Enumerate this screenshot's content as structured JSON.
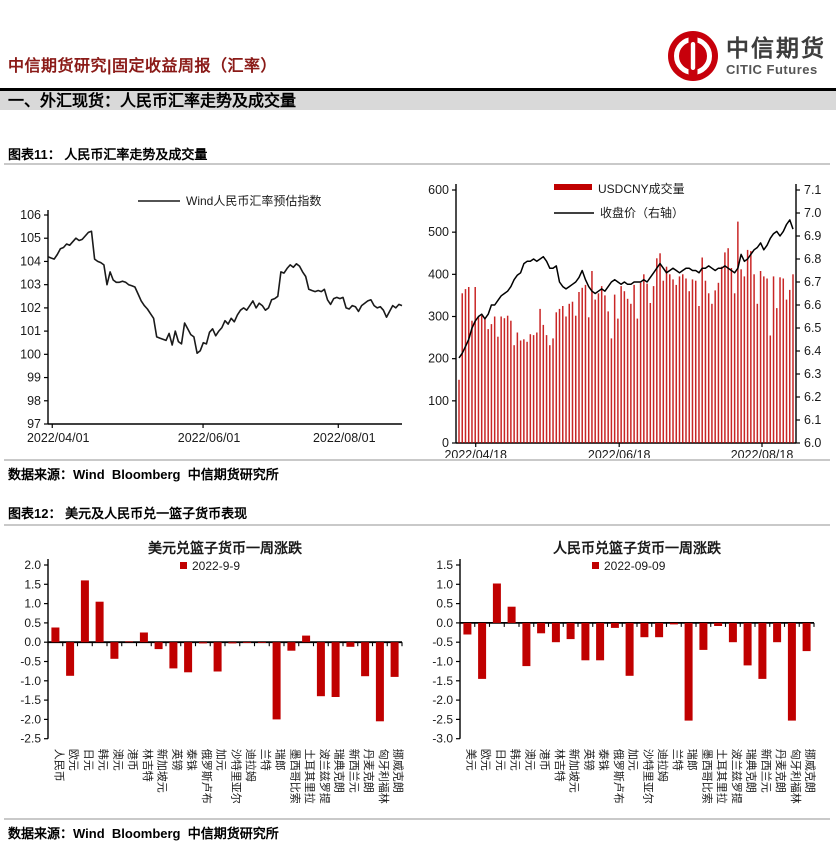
{
  "header": {
    "title": "中信期货研究|固定收益周报（汇率）",
    "logo": {
      "cn": "中信期货",
      "en": "CITIC Futures",
      "brand_color": "#c7000b"
    }
  },
  "section": {
    "title": "一、外汇现货：人民币汇率走势及成交量"
  },
  "figure11": {
    "caption": "图表11： 人民币汇率走势及成交量",
    "source": "数据来源：Wind  Bloomberg  中信期货研究所"
  },
  "figure12": {
    "caption": "图表12： 美元及人民币兑一篮子货币表现",
    "source": "数据来源：Wind  Bloomberg  中信期货研究所"
  },
  "chart_data": [
    {
      "type": "line",
      "legend": "Wind人民币汇率预估指数",
      "line_color": "#1a1a1a",
      "ylim": [
        97,
        106
      ],
      "ytick_step": 1,
      "ydecimals": 0,
      "xticks": [
        "2022/04/01",
        "2022/06/01",
        "2022/08/01"
      ],
      "xtick_pos": [
        0.012,
        0.438,
        0.82
      ],
      "values": [
        104.2,
        104.15,
        104.1,
        104.3,
        104.55,
        104.6,
        104.75,
        104.7,
        104.85,
        105.0,
        104.9,
        104.95,
        105.1,
        105.25,
        105.3,
        104.1,
        104.0,
        103.95,
        103.85,
        103.0,
        103.55,
        103.2,
        103.1,
        103.1,
        103.15,
        103.1,
        103.0,
        102.95,
        102.9,
        102.6,
        102.3,
        102.1,
        101.95,
        101.75,
        101.55,
        100.75,
        100.7,
        100.65,
        100.6,
        100.9,
        100.4,
        101.0,
        100.55,
        100.45,
        101.35,
        101.1,
        100.85,
        100.75,
        100.05,
        100.15,
        100.5,
        100.45,
        100.95,
        101.1,
        100.8,
        101.0,
        101.15,
        101.45,
        101.3,
        101.55,
        101.4,
        101.7,
        101.9,
        102.0,
        101.9,
        102.1,
        102.3,
        102.0,
        102.2,
        102.1,
        101.9,
        102.0,
        102.35,
        102.4,
        102.5,
        103.55,
        103.5,
        103.7,
        103.85,
        103.75,
        103.9,
        103.8,
        103.55,
        103.35,
        102.8,
        102.75,
        102.7,
        102.75,
        102.7,
        102.8,
        102.35,
        102.15,
        102.4,
        102.45,
        102.4,
        102.45,
        102.0,
        101.95,
        102.1,
        102.05,
        101.85,
        102.1,
        102.2,
        102.3,
        102.35,
        102.1,
        102.0,
        102.05,
        101.9,
        101.6,
        101.85,
        102.1,
        102.0,
        102.15,
        102.1
      ]
    },
    {
      "type": "bar+line",
      "legend_bar": "USDCNY成交量",
      "legend_line": "收盘价（右轴）",
      "bar_color": "#c00000",
      "line_color": "#000000",
      "ylim_left": [
        0,
        600
      ],
      "ytick_step_left": 100,
      "ylim_right": [
        6.0,
        7.1
      ],
      "ytick_step_right": 0.1,
      "xticks": [
        "2022/04/18",
        "2022/06/18",
        "2022/08/18"
      ],
      "xtick_pos": [
        0.058,
        0.48,
        0.9
      ],
      "bars": [
        150,
        355,
        365,
        370,
        290,
        370,
        300,
        302,
        295,
        270,
        282,
        300,
        252,
        300,
        296,
        302,
        290,
        232,
        262,
        243,
        246,
        240,
        258,
        256,
        262,
        318,
        280,
        256,
        232,
        248,
        310,
        318,
        325,
        300,
        330,
        335,
        302,
        358,
        368,
        375,
        298,
        408,
        340,
        355,
        372,
        350,
        312,
        248,
        352,
        295,
        372,
        360,
        342,
        330,
        375,
        295,
        380,
        400,
        378,
        332,
        372,
        438,
        450,
        385,
        418,
        400,
        388,
        375,
        395,
        400,
        390,
        360,
        388,
        385,
        325,
        440,
        385,
        355,
        330,
        362,
        380,
        418,
        452,
        462,
        415,
        355,
        525,
        412,
        395,
        458,
        455,
        400,
        330,
        408,
        395,
        390,
        255,
        395,
        320,
        393,
        390,
        340,
        363,
        400
      ],
      "line": [
        6.37,
        6.39,
        6.42,
        6.45,
        6.5,
        6.53,
        6.55,
        6.56,
        6.54,
        6.56,
        6.6,
        6.6,
        6.62,
        6.64,
        6.65,
        6.66,
        6.68,
        6.71,
        6.73,
        6.74,
        6.78,
        6.79,
        6.79,
        6.8,
        6.79,
        6.8,
        6.81,
        6.79,
        6.76,
        6.76,
        6.77,
        6.7,
        6.68,
        6.67,
        6.68,
        6.69,
        6.7,
        6.72,
        6.75,
        6.71,
        6.68,
        6.66,
        6.65,
        6.66,
        6.67,
        6.66,
        6.68,
        6.7,
        6.71,
        6.7,
        6.69,
        6.7,
        6.69,
        6.69,
        6.7,
        6.7,
        6.7,
        6.71,
        6.7,
        6.72,
        6.74,
        6.76,
        6.78,
        6.76,
        6.74,
        6.75,
        6.76,
        6.75,
        6.74,
        6.75,
        6.76,
        6.76,
        6.75,
        6.75,
        6.74,
        6.76,
        6.76,
        6.77,
        6.76,
        6.75,
        6.76,
        6.76,
        6.77,
        6.76,
        6.75,
        6.74,
        6.76,
        6.82,
        6.79,
        6.8,
        6.82,
        6.84,
        6.85,
        6.87,
        6.84,
        6.86,
        6.89,
        6.91,
        6.92,
        6.9,
        6.92,
        6.95,
        6.97,
        6.93
      ]
    },
    {
      "type": "bar",
      "title": "美元兑篮子货币一周涨跌",
      "legend": "2022-9-9",
      "bar_color": "#c00000",
      "ylim": [
        -2.5,
        2.0
      ],
      "ytick_step": 0.5,
      "ydecimals": 1,
      "categories": [
        "人民币",
        "欧元",
        "日元",
        "韩元",
        "澳元",
        "港币",
        "林吉特",
        "新加坡元",
        "英镑",
        "泰铢",
        "俄罗斯卢布",
        "加元",
        "沙特里亚尔",
        "迪拉姆",
        "兰特",
        "瑞郎",
        "墨西哥比索",
        "土耳其里拉",
        "波兰兹罗提",
        "瑞典克朗",
        "新西兰元",
        "丹麦克朗",
        "匈牙利福林",
        "挪威克朗"
      ],
      "values": [
        0.38,
        -0.87,
        1.6,
        1.05,
        -0.43,
        0.02,
        0.25,
        -0.18,
        -0.68,
        -0.78,
        -0.03,
        -0.76,
        -0.03,
        -0.02,
        -0.02,
        -2.0,
        -0.22,
        0.17,
        -1.4,
        -1.42,
        -0.12,
        -0.88,
        -2.05,
        -0.9
      ]
    },
    {
      "type": "bar",
      "title": "人民币兑篮子货币一周涨跌",
      "legend": "2022-09-09",
      "bar_color": "#c00000",
      "ylim": [
        -3.0,
        1.5
      ],
      "ytick_step": 0.5,
      "ydecimals": 1,
      "categories": [
        "美元",
        "欧元",
        "日元",
        "韩元",
        "澳元",
        "港币",
        "林吉特",
        "新加坡元",
        "英镑",
        "泰铢",
        "俄罗斯卢布",
        "加元",
        "沙特里亚尔",
        "迪拉姆",
        "兰特",
        "瑞郎",
        "墨西哥比索",
        "土耳其里拉",
        "波兰兹罗提",
        "瑞典克朗",
        "新西兰元",
        "丹麦克朗",
        "匈牙利福林",
        "挪威克朗"
      ],
      "values": [
        -0.3,
        -1.45,
        1.02,
        0.42,
        -1.12,
        -0.27,
        -0.5,
        -0.42,
        -0.97,
        -0.97,
        -0.13,
        -1.37,
        -0.37,
        -0.37,
        -0.04,
        -2.53,
        -0.7,
        -0.08,
        -0.5,
        -1.1,
        -1.45,
        -0.5,
        -2.53,
        -0.73
      ]
    }
  ]
}
